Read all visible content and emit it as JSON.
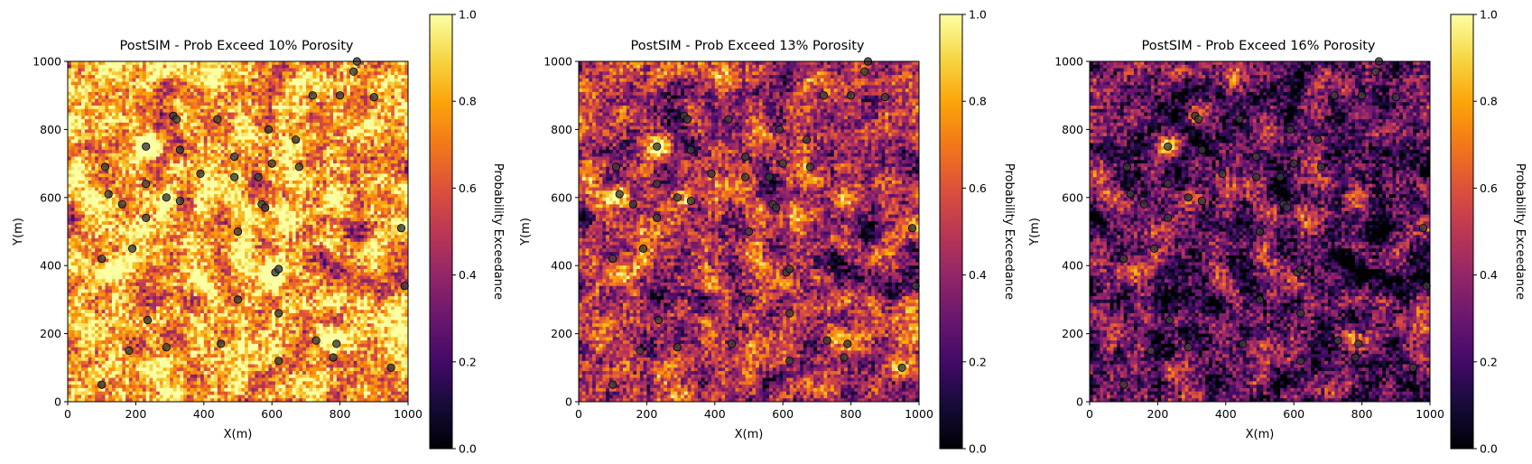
{
  "chart_data": [
    {
      "type": "heatmap",
      "title": "PostSIM - Prob Exceed 10% Porosity",
      "threshold": 0.1,
      "xlabel": "X(m)",
      "ylabel": "Y(m)",
      "xlim": [
        0,
        1000
      ],
      "ylim": [
        0,
        1000
      ],
      "xticks": [
        "0",
        "200",
        "400",
        "600",
        "800",
        "1000"
      ],
      "yticks": [
        "0",
        "200",
        "400",
        "600",
        "800",
        "1000"
      ],
      "colorbar": {
        "label": "Probability Exceedance",
        "range": [
          0.0,
          1.0
        ],
        "ticks": [
          "0.0",
          "0.2",
          "0.4",
          "0.6",
          "0.8",
          "1.0"
        ],
        "colormap": "inferno"
      },
      "mean_probability": 0.78,
      "bright_spots": [
        [
          300,
          600
        ],
        [
          230,
          750
        ],
        [
          610,
          390
        ]
      ]
    },
    {
      "type": "heatmap",
      "title": "PostSIM - Prob Exceed 13% Porosity",
      "threshold": 0.13,
      "xlabel": "X(m)",
      "ylabel": "Y(m)",
      "xlim": [
        0,
        1000
      ],
      "ylim": [
        0,
        1000
      ],
      "xticks": [
        "0",
        "200",
        "400",
        "600",
        "800",
        "1000"
      ],
      "yticks": [
        "0",
        "200",
        "400",
        "600",
        "800",
        "1000"
      ],
      "colorbar": {
        "label": "Probability Exceedance",
        "range": [
          0.0,
          1.0
        ],
        "ticks": [
          "0.0",
          "0.2",
          "0.4",
          "0.6",
          "0.8",
          "1.0"
        ],
        "colormap": "inferno"
      },
      "mean_probability": 0.45,
      "bright_spots": [
        [
          320,
          600
        ],
        [
          230,
          750
        ],
        [
          120,
          610
        ],
        [
          940,
          100
        ]
      ]
    },
    {
      "type": "heatmap",
      "title": "PostSIM - Prob Exceed 16% Porosity",
      "threshold": 0.16,
      "xlabel": "X(m)",
      "ylabel": "Y(m)",
      "xlim": [
        0,
        1000
      ],
      "ylim": [
        0,
        1000
      ],
      "xticks": [
        "0",
        "200",
        "400",
        "600",
        "800",
        "1000"
      ],
      "yticks": [
        "0",
        "200",
        "400",
        "600",
        "800",
        "1000"
      ],
      "colorbar": {
        "label": "Probability Exceedance",
        "range": [
          0.0,
          1.0
        ],
        "ticks": [
          "0.0",
          "0.2",
          "0.4",
          "0.6",
          "0.8",
          "1.0"
        ],
        "colormap": "inferno"
      },
      "mean_probability": 0.25,
      "bright_spots": [
        [
          320,
          595
        ],
        [
          230,
          750
        ],
        [
          310,
          840
        ]
      ]
    }
  ],
  "wells": {
    "x": [
      100,
      110,
      100,
      120,
      160,
      180,
      190,
      230,
      230,
      230,
      235,
      290,
      290,
      310,
      320,
      330,
      330,
      390,
      440,
      450,
      490,
      490,
      500,
      500,
      560,
      570,
      580,
      590,
      600,
      610,
      620,
      620,
      620,
      670,
      680,
      720,
      730,
      780,
      790,
      800,
      840,
      850,
      900,
      950,
      980,
      990
    ],
    "y": [
      50,
      690,
      420,
      610,
      580,
      150,
      450,
      750,
      640,
      540,
      240,
      160,
      600,
      840,
      830,
      740,
      590,
      670,
      830,
      170,
      720,
      660,
      500,
      300,
      660,
      580,
      570,
      800,
      700,
      380,
      390,
      260,
      120,
      770,
      690,
      900,
      180,
      130,
      170,
      900,
      970,
      1000,
      895,
      100,
      510,
      340
    ],
    "marker_color": "#3a3a3a"
  }
}
